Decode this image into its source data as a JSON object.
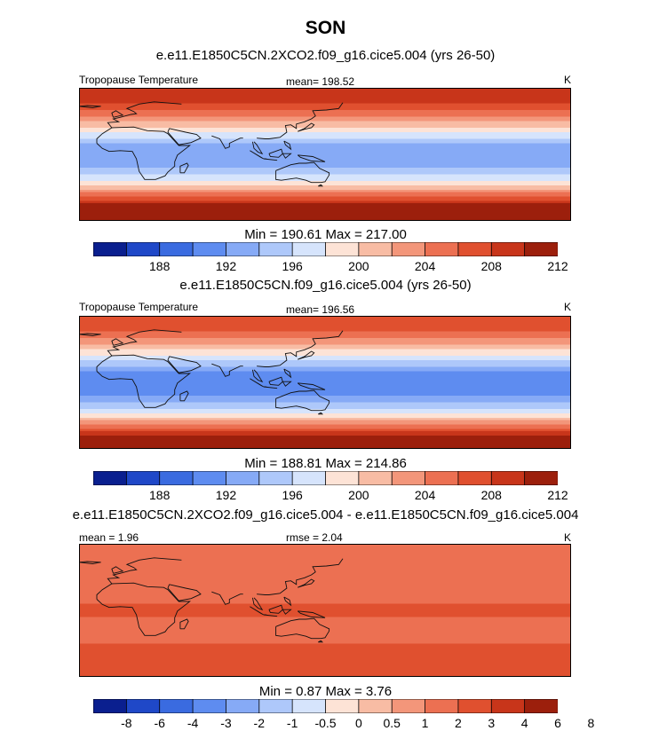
{
  "season": "SON",
  "units_label": "K",
  "panels": [
    {
      "title": "e.e11.E1850C5CN.2XCO2.f09_g16.cice5.004 (yrs 26-50)",
      "left_label": "Tropopause Temperature",
      "center_label": "mean= 198.52",
      "minmax": "Min = 190.61 Max = 217.00"
    },
    {
      "title": "e.e11.E1850C5CN.f09_g16.cice5.004 (yrs 26-50)",
      "left_label": "Tropopause Temperature",
      "center_label": "mean= 196.56",
      "minmax": "Min = 188.81 Max = 214.86"
    },
    {
      "title": "e.e11.E1850C5CN.2XCO2.f09_g16.cice5.004 - e.e11.E1850C5CN.f09_g16.cice5.004",
      "left_label": "mean =   1.96",
      "center_label": "rmse =  2.04",
      "minmax": "Min =  0.87 Max =   3.76"
    }
  ],
  "colorbars": [
    {
      "ticks": [
        "188",
        "192",
        "196",
        "200",
        "204",
        "208",
        "212"
      ]
    },
    {
      "ticks": [
        "188",
        "192",
        "196",
        "200",
        "204",
        "208",
        "212"
      ]
    },
    {
      "ticks": [
        "-8",
        "-6",
        "-4",
        "-3",
        "-2",
        "-1",
        "-0.5",
        "0",
        "0.5",
        "1",
        "2",
        "3",
        "4",
        "6",
        "8"
      ]
    }
  ],
  "colors": {
    "palette": [
      "#0a1f8f",
      "#1f48c8",
      "#3a6be0",
      "#5e8cf0",
      "#86aaf6",
      "#aec8fa",
      "#d6e4fc",
      "#fde3d6",
      "#f8bca4",
      "#f3967a",
      "#ec7052",
      "#e0502f",
      "#c8351a",
      "#9c1f0c"
    ],
    "land_outline": "#111111"
  },
  "chart_data": [
    {
      "type": "heatmap",
      "title": "e.e11.E1850C5CN.2XCO2.f09_g16.cice5.004 (yrs 26-50)",
      "variable": "Tropopause Temperature",
      "units": "K",
      "mean": 198.52,
      "min": 190.61,
      "max": 217.0,
      "levels": [
        186,
        188,
        190,
        192,
        194,
        196,
        198,
        200,
        202,
        204,
        206,
        208,
        210,
        212,
        214
      ],
      "lat_profile": [
        [
          -90,
          215
        ],
        [
          -75,
          213
        ],
        [
          -60,
          207
        ],
        [
          -45,
          201
        ],
        [
          -30,
          196.5
        ],
        [
          -15,
          193
        ],
        [
          0,
          192
        ],
        [
          15,
          194
        ],
        [
          30,
          198
        ],
        [
          45,
          202
        ],
        [
          60,
          206
        ],
        [
          75,
          209
        ],
        [
          90,
          210
        ]
      ]
    },
    {
      "type": "heatmap",
      "title": "e.e11.E1850C5CN.f09_g16.cice5.004 (yrs 26-50)",
      "variable": "Tropopause Temperature",
      "units": "K",
      "mean": 196.56,
      "min": 188.81,
      "max": 214.86,
      "levels": [
        186,
        188,
        190,
        192,
        194,
        196,
        198,
        200,
        202,
        204,
        206,
        208,
        210,
        212,
        214
      ],
      "lat_profile": [
        [
          -90,
          213
        ],
        [
          -75,
          211
        ],
        [
          -60,
          205
        ],
        [
          -45,
          199
        ],
        [
          -30,
          194.5
        ],
        [
          -15,
          191
        ],
        [
          0,
          190
        ],
        [
          15,
          192
        ],
        [
          30,
          196
        ],
        [
          45,
          200
        ],
        [
          60,
          204
        ],
        [
          75,
          207
        ],
        [
          90,
          208
        ]
      ]
    },
    {
      "type": "heatmap",
      "title": "e.e11.E1850C5CN.2XCO2.f09_g16.cice5.004 - e.e11.E1850C5CN.f09_g16.cice5.004",
      "units": "K",
      "mean": 1.96,
      "rmse": 2.04,
      "min": 0.87,
      "max": 3.76,
      "levels": [
        -8,
        -6,
        -4,
        -3,
        -2,
        -1,
        -0.5,
        0,
        0.5,
        1,
        2,
        3,
        4,
        6,
        8
      ],
      "lat_profile": [
        [
          -90,
          2.5
        ],
        [
          -60,
          2.2
        ],
        [
          -30,
          1.8
        ],
        [
          0,
          2.1
        ],
        [
          30,
          1.8
        ],
        [
          60,
          2.0
        ],
        [
          90,
          1.5
        ]
      ]
    }
  ]
}
